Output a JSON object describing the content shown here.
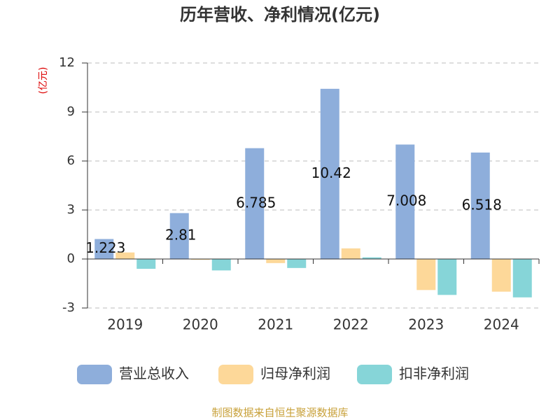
{
  "chart_data": {
    "type": "bar",
    "title": "历年营收、净利情况(亿元)",
    "y_label": "(亿元)",
    "categories": [
      "2019",
      "2020",
      "2021",
      "2022",
      "2023",
      "2024"
    ],
    "series": [
      {
        "name": "营业总收入",
        "color": "#8eaedb",
        "values": [
          1.223,
          2.81,
          6.785,
          10.42,
          7.008,
          6.518
        ]
      },
      {
        "name": "归母净利润",
        "color": "#fdd899",
        "values": [
          0.4,
          -0.05,
          -0.25,
          0.65,
          -1.9,
          -2.0
        ]
      },
      {
        "name": "扣非净利润",
        "color": "#86d5d8",
        "values": [
          -0.6,
          -0.7,
          -0.55,
          0.1,
          -2.2,
          -2.35
        ]
      }
    ],
    "ylim": [
      -3,
      12
    ],
    "yticks": [
      -3,
      0,
      3,
      6,
      9,
      12
    ],
    "grid": true,
    "legend": "bottom",
    "source": "制图数据来自恒生聚源数据库"
  }
}
